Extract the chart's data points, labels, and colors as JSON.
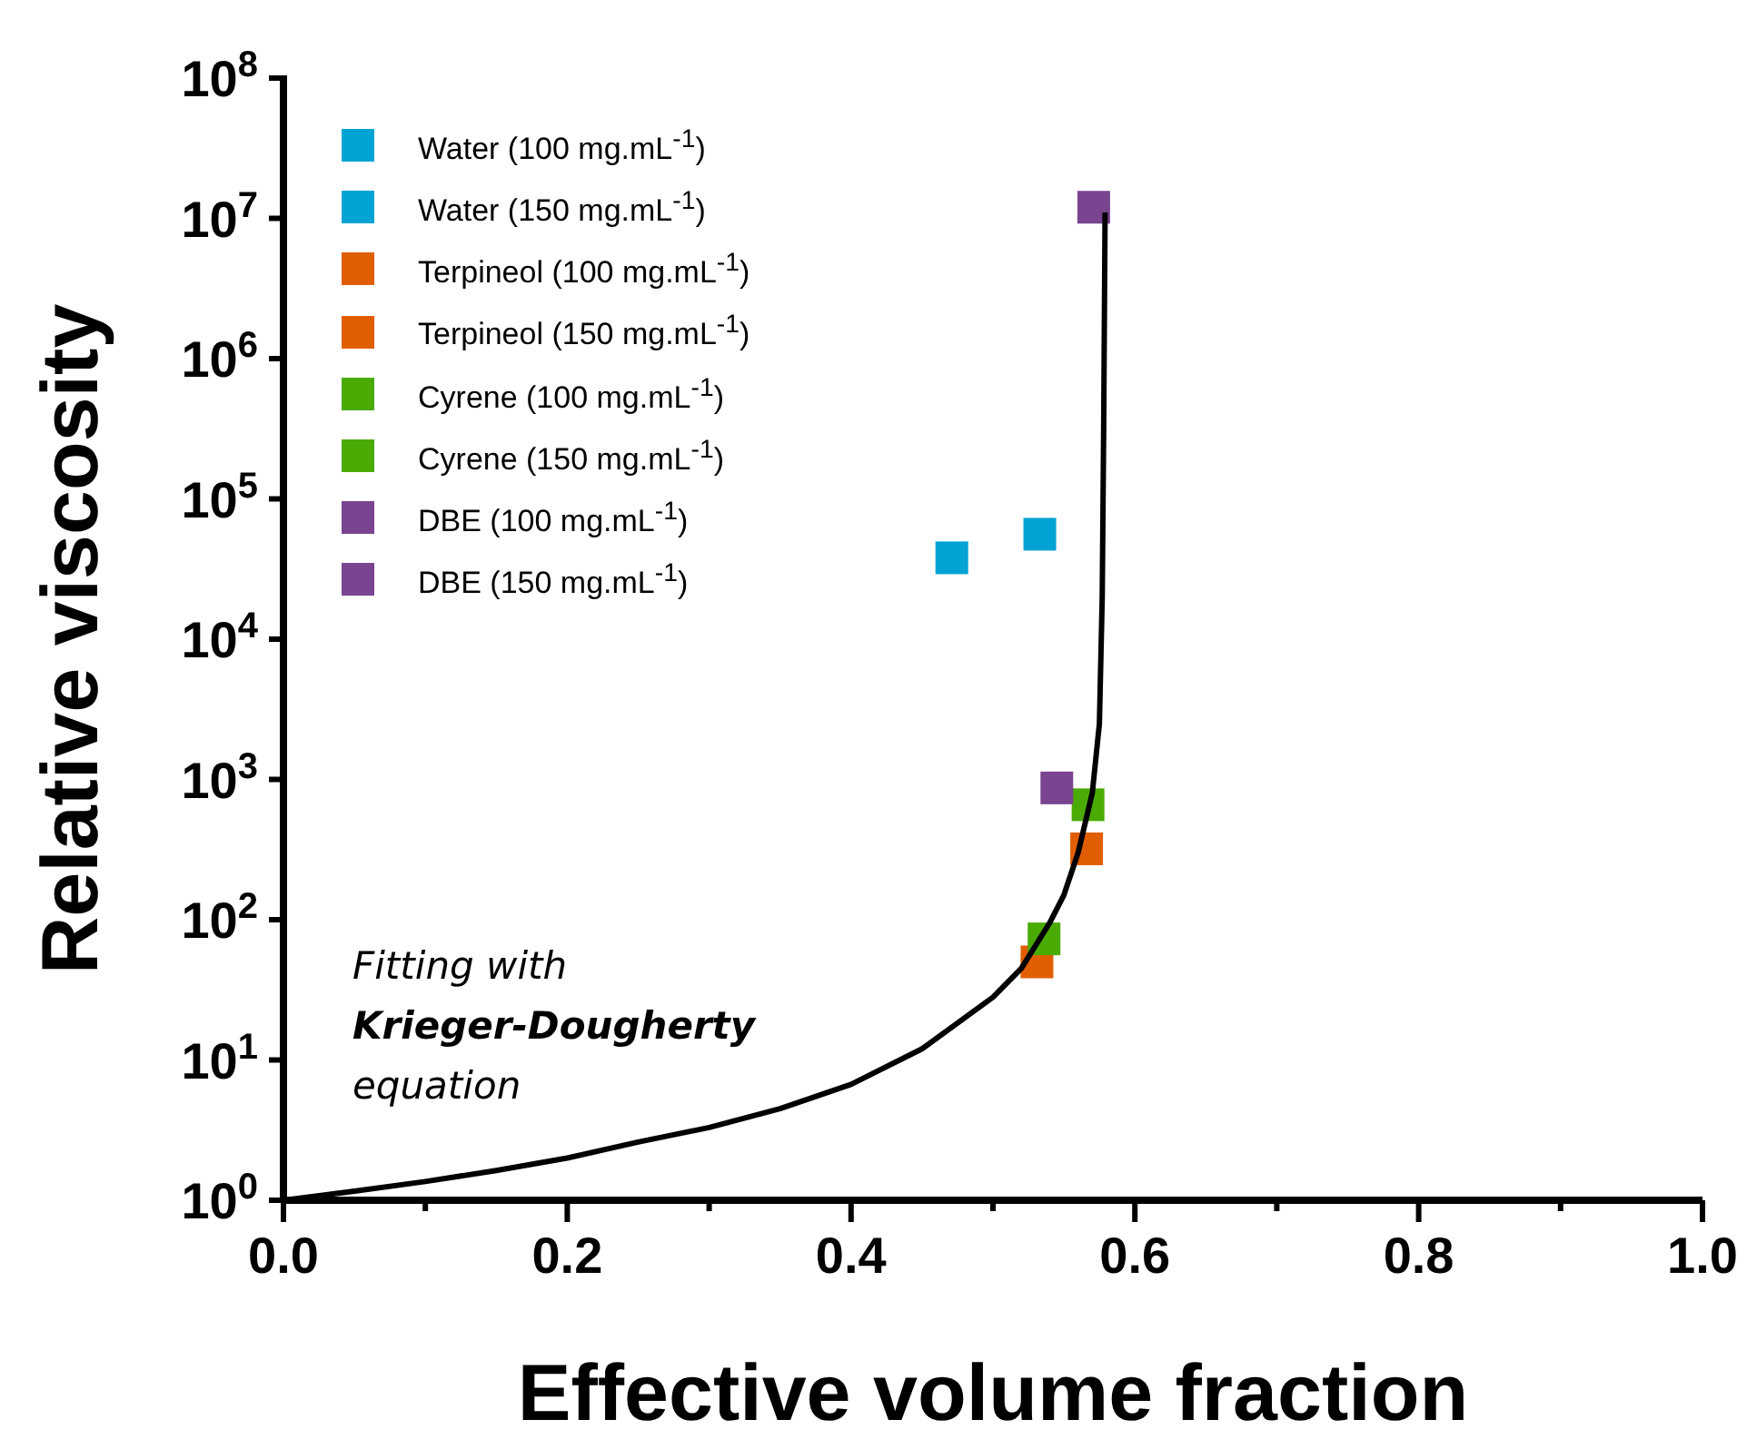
{
  "chart_data": {
    "type": "scatter",
    "xlabel": "Effective volume fraction",
    "ylabel": "Relative viscosity",
    "log": "y",
    "xlim": [
      0,
      1
    ],
    "ylim": [
      1,
      100000000
    ],
    "xticks": [
      {
        "value": 0,
        "label": "0.0"
      },
      {
        "value": 0.1,
        "label": null
      },
      {
        "value": 0.2,
        "label": "0.2"
      },
      {
        "value": 0.3,
        "label": null
      },
      {
        "value": 0.4,
        "label": "0.4"
      },
      {
        "value": 0.5,
        "label": null
      },
      {
        "value": 0.6,
        "label": "0.6"
      },
      {
        "value": 0.7,
        "label": null
      },
      {
        "value": 0.8,
        "label": "0.8"
      },
      {
        "value": 0.9,
        "label": null
      },
      {
        "value": 1,
        "label": "1.0"
      }
    ],
    "yticks": [
      {
        "value": 1,
        "label": "10$^{0}$"
      },
      {
        "value": 10,
        "label": "10$^{1}$"
      },
      {
        "value": 100,
        "label": "10$^{2}$"
      },
      {
        "value": 1000,
        "label": "10$^{3}$"
      },
      {
        "value": 10000,
        "label": "10$^{4}$"
      },
      {
        "value": 100000,
        "label": "10$^{5}$"
      },
      {
        "value": 1000000,
        "label": "10$^{6}$"
      },
      {
        "value": 10000000,
        "label": "10$^{7}$"
      },
      {
        "value": 100000000,
        "label": "10$^{8}$"
      }
    ],
    "grid": false,
    "legend": "top left",
    "marker": "square",
    "annotations": [
      "Fitting with",
      "Krieger-Dougherty",
      "equation"
    ],
    "series": [
      {
        "type": "line",
        "color": "#000000",
        "marker": "none",
        "line_style": "solid",
        "x": [
          0,
          0.05,
          0.1,
          0.15,
          0.2,
          0.25,
          0.3,
          0.35,
          0.4,
          0.45,
          0.5,
          0.52,
          0.54,
          0.55,
          0.56,
          0.57,
          0.575,
          0.577,
          0.578,
          0.579
        ],
        "values": [
          1,
          1.16,
          1.36,
          1.63,
          2,
          2.6,
          3.3,
          4.5,
          6.7,
          12,
          28,
          45,
          95,
          150,
          300,
          800,
          2500,
          20000,
          300000,
          11000000
        ]
      },
      {
        "name": "Water (100 mg.mL$^{-1}$)",
        "color": "#00a3d3",
        "x": [
          0.471
        ],
        "values": [
          38000
        ]
      },
      {
        "name": "Water (150 mg.mL$^{-1}$)",
        "color": "#00a3d3",
        "x": [
          0.533
        ],
        "values": [
          56000
        ]
      },
      {
        "name": "Terpineol (100 mg.mL$^{-1}$)",
        "color": "#e05e00",
        "x": [
          0.531
        ],
        "values": [
          50
        ]
      },
      {
        "name": "Terpineol (150 mg.mL$^{-1}$)",
        "color": "#e05e00",
        "x": [
          0.566
        ],
        "values": [
          320
        ]
      },
      {
        "name": "Cyrene (100 mg.mL$^{-1}$)",
        "color": "#4aab05",
        "x": [
          0.536
        ],
        "values": [
          73
        ]
      },
      {
        "name": "Cyrene (150 mg.mL$^{-1}$)",
        "color": "#4aab05",
        "x": [
          0.567
        ],
        "values": [
          660
        ]
      },
      {
        "name": "DBE (100 mg.mL$^{-1}$)",
        "color": "#7a4490",
        "x": [
          0.545
        ],
        "values": [
          870
        ]
      },
      {
        "name": "DBE (150 mg.mL$^{-1}$)",
        "color": "#7a4490",
        "x": [
          0.571
        ],
        "values": [
          12000000
        ]
      }
    ]
  }
}
